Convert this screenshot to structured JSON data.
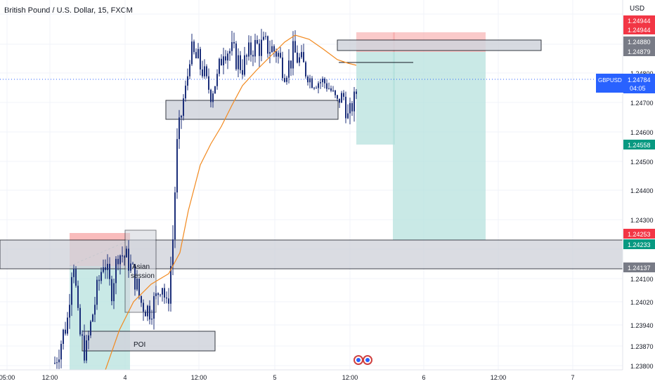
{
  "header": {
    "title": "British Pound / U.S. Dollar, 15, FXCM",
    "currency": "USD"
  },
  "price_badges": [
    {
      "value": "1.24944",
      "role": "take-profit-high",
      "bg": "#f23645",
      "fg": "#ffffff"
    },
    {
      "value": "1.24944",
      "role": "take-profit-high-2",
      "bg": "#f23645",
      "fg": "#ffffff"
    },
    {
      "value": "1.24880",
      "role": "zone-top",
      "bg": "#787b86",
      "fg": "#ffffff"
    },
    {
      "value": "1.24879",
      "role": "zone-bottom",
      "bg": "#787b86",
      "fg": "#ffffff"
    },
    {
      "value": "1.24558",
      "role": "target-short",
      "bg": "#089981",
      "fg": "#ffffff"
    },
    {
      "value": "1.24253",
      "role": "stop-zone-red",
      "bg": "#f23645",
      "fg": "#ffffff"
    },
    {
      "value": "1.24233",
      "role": "target-long",
      "bg": "#089981",
      "fg": "#ffffff"
    },
    {
      "value": "1.24137",
      "role": "zone-low",
      "bg": "#787b86",
      "fg": "#ffffff"
    }
  ],
  "current_price": {
    "symbol": "GBPUSD",
    "price": "1.24784",
    "countdown": "04:05",
    "bg": "#2962ff"
  },
  "annotations": {
    "asian_session": "Asian\nsession",
    "asian_line1": "Asian",
    "asian_line2": "session",
    "poi": "POI"
  },
  "colors": {
    "up": "#26a69a",
    "down": "#1e3a8a",
    "candle": "#1c2f7a",
    "ma": "#f2891e",
    "zone_fill": "#d1d4dc",
    "profit_fill": "#b2dfdb",
    "loss_fill": "#f7a6a6"
  },
  "chart_data": {
    "type": "candlestick",
    "title": "British Pound / U.S. Dollar, 15, FXCM",
    "x_tick_labels": [
      "05:00",
      "12:00",
      "4",
      "12:00",
      "5",
      "12:00",
      "6",
      "12:00",
      "7"
    ],
    "y_tick_labels": [
      "1.24800",
      "1.24700",
      "1.24600",
      "1.24500",
      "1.24400",
      "1.24300",
      "1.24100",
      "1.24020",
      "1.23940",
      "1.23870",
      "1.23800"
    ],
    "ylim": [
      1.2379,
      1.2497
    ],
    "grid": true,
    "series": [
      {
        "name": "GBPUSD",
        "approx_close_path": [
          [
            "05:00",
            1.238
          ],
          [
            "12:00",
            1.2382
          ],
          [
            "12:00+",
            1.2405
          ],
          [
            "4",
            1.2418
          ],
          [
            "4+",
            1.2402
          ],
          [
            "4 late",
            1.2398
          ],
          [
            "12:00",
            1.2475
          ],
          [
            "12:00+",
            1.2492
          ],
          [
            "5",
            1.249
          ],
          [
            "5+",
            1.2484
          ],
          [
            "12:00",
            1.2478
          ]
        ]
      },
      {
        "name": "MA",
        "approx_path": [
          [
            "4",
            1.238
          ],
          [
            "12:00",
            1.2445
          ],
          [
            "5",
            1.2488
          ],
          [
            "12:00",
            1.2481
          ]
        ]
      }
    ],
    "levels": {
      "take_profit": 1.24944,
      "zone_top": 1.2488,
      "zone_bottom": 1.24879,
      "current": 1.24784,
      "target_1": 1.24558,
      "stop_zone": 1.24253,
      "target_2": 1.24233,
      "zone_low": 1.24137
    }
  }
}
